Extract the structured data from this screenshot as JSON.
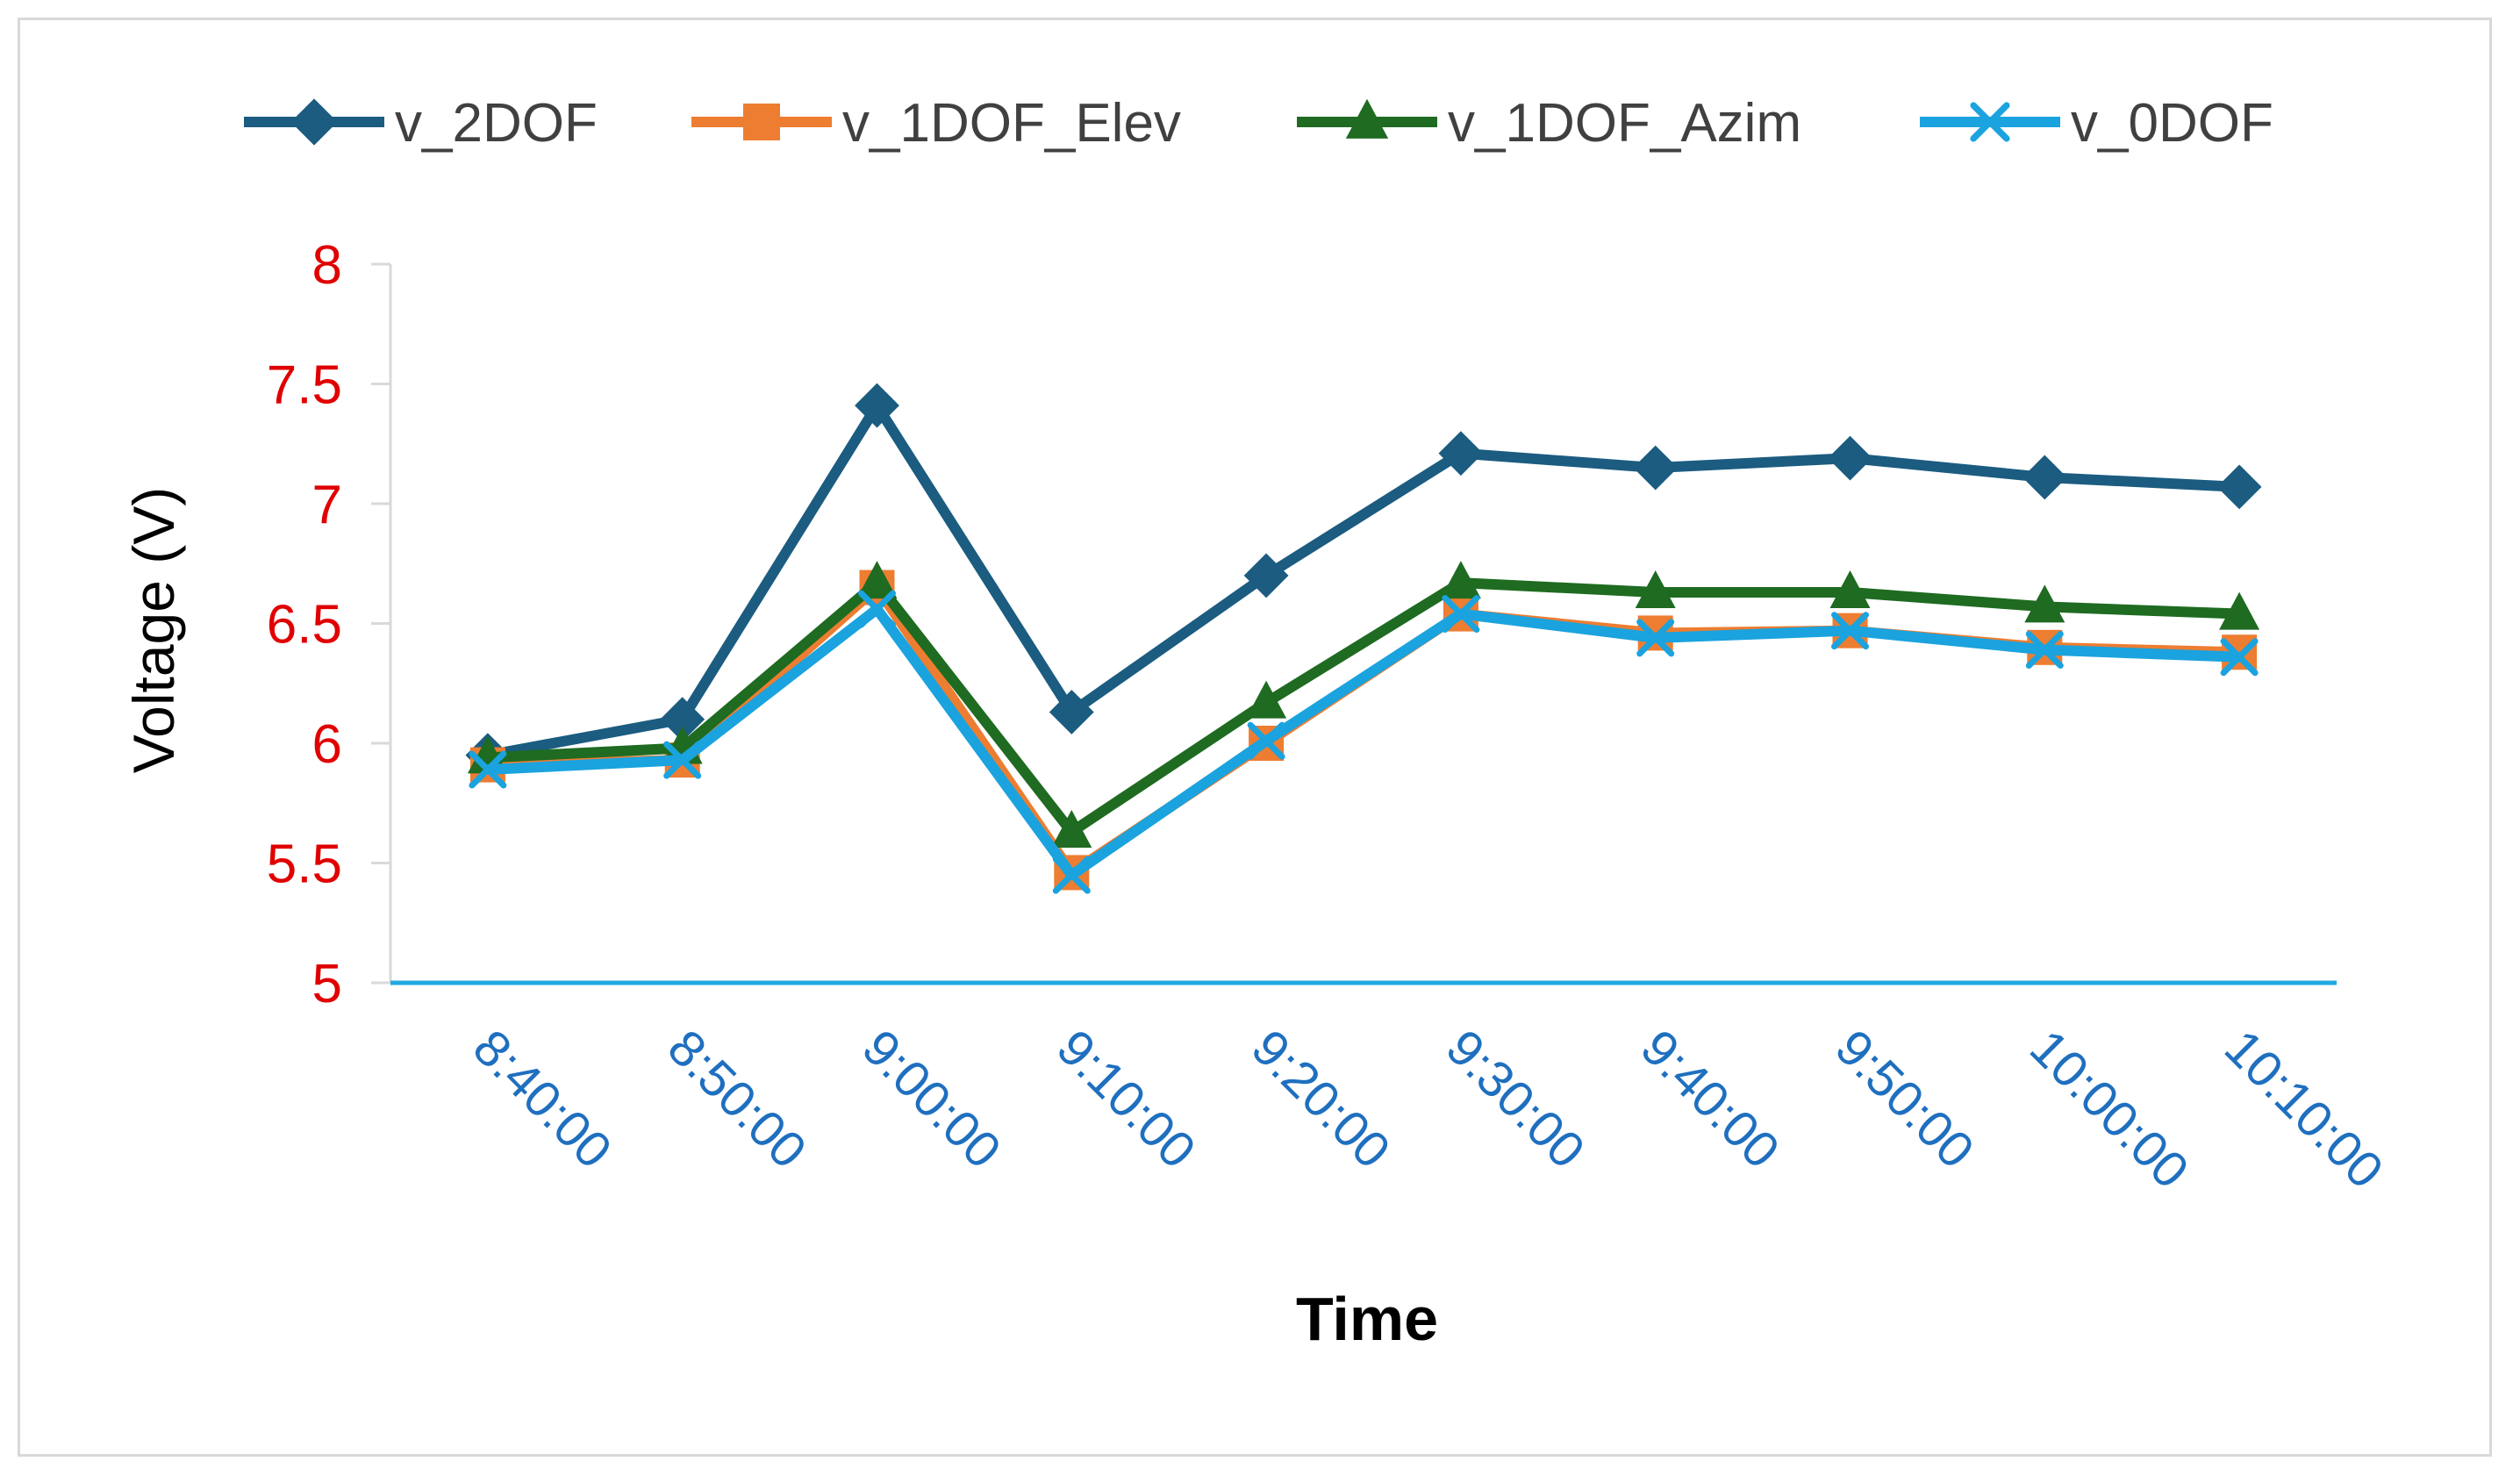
{
  "chart_data": {
    "type": "line",
    "title": "",
    "xlabel": "Time",
    "ylabel": "Voltage (V)",
    "categories": [
      "8:40:00",
      "8:50:00",
      "9:00:00",
      "9:10:00",
      "9:20:00",
      "9:30:00",
      "9:40:00",
      "9:50:00",
      "10:00:00",
      "10:10:00"
    ],
    "ylim": [
      5,
      8
    ],
    "yticks": [
      "5",
      "5.5",
      "6",
      "6.5",
      "7",
      "7.5",
      "8"
    ],
    "grid": false,
    "legend_position": "top",
    "axis_colors": {
      "ytick": "#e00000",
      "xtick": "#1f6fbf",
      "xlabel": "#1f6fbf",
      "baseline": "#22a8e0",
      "yaxis": "#d9d9d9"
    },
    "series": [
      {
        "name": "v_2DOF",
        "color": "#1b5c80",
        "marker": "diamond",
        "values": [
          5.95,
          6.1,
          7.41,
          6.13,
          6.7,
          7.21,
          7.15,
          7.19,
          7.11,
          7.07
        ]
      },
      {
        "name": "v_1DOF_Elev",
        "color": "#ed7d31",
        "marker": "square",
        "values": [
          5.91,
          5.93,
          6.65,
          5.46,
          6.0,
          6.54,
          6.46,
          6.47,
          6.4,
          6.38
        ]
      },
      {
        "name": "v_1DOF_Azim",
        "color": "#1e6b21",
        "marker": "triangle",
        "values": [
          5.94,
          5.98,
          6.67,
          5.63,
          6.17,
          6.67,
          6.63,
          6.63,
          6.57,
          6.54
        ]
      },
      {
        "name": "v_0DOF",
        "color": "#1aa3de",
        "marker": "x",
        "values": [
          5.89,
          5.93,
          6.56,
          5.45,
          6.01,
          6.54,
          6.44,
          6.47,
          6.39,
          6.36
        ]
      }
    ]
  }
}
